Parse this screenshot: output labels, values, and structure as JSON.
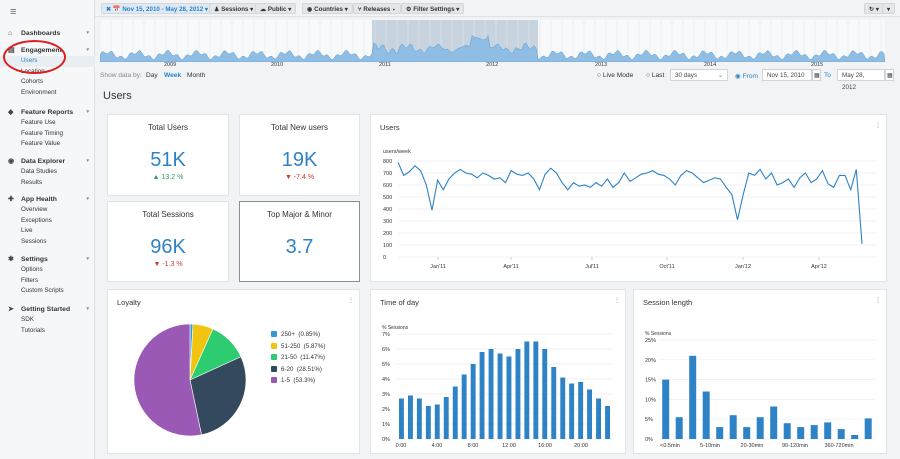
{
  "colors": {
    "accent": "#2d83c6",
    "green": "#2ecc71",
    "yellow": "#f1c40f",
    "navy": "#34495e",
    "purple": "#9b59b6",
    "blue": "#3498db",
    "red": "#d0392b"
  },
  "sidebar": {
    "menu_icon": "≡",
    "sections": [
      {
        "title": "Dashboards",
        "icon": "dashboard-icon",
        "glyph": "⌂",
        "items": []
      },
      {
        "title": "Engagement",
        "icon": "engagement-icon",
        "glyph": "▤",
        "items": [
          "Users",
          "Location",
          "Cohorts",
          "Environment"
        ]
      },
      {
        "title": "Feature Reports",
        "icon": "feature-reports-icon",
        "glyph": "◆",
        "items": [
          "Feature Use",
          "Feature Timing",
          "Feature Value"
        ]
      },
      {
        "title": "Data Explorer",
        "icon": "data-explorer-icon",
        "glyph": "◉",
        "items": [
          "Data Studies",
          "Results"
        ]
      },
      {
        "title": "App Health",
        "icon": "app-health-icon",
        "glyph": "✚",
        "items": [
          "Overview",
          "Exceptions",
          "Live",
          "Sessions"
        ]
      },
      {
        "title": "Settings",
        "icon": "settings-icon",
        "glyph": "✱",
        "items": [
          "Options",
          "Filters",
          "Custom Scripts"
        ]
      },
      {
        "title": "Getting Started",
        "icon": "getting-started-icon",
        "glyph": "➤",
        "items": [
          "SDK",
          "Tutorials"
        ]
      }
    ],
    "active_item": "Users"
  },
  "topbar": {
    "date_range": "✖ 📅 Nov 15, 2010 - May 28, 2012 ▾",
    "sessions": "♟ Sessions ▾",
    "public": "☁ Public ▾",
    "countries": "◉ Countries ▾",
    "releases": "⑂ Releases ▾",
    "filter": "⚙ Filter Settings ▾",
    "refresh": "↻ ▾",
    "more": "▾"
  },
  "overview": {
    "years": [
      "2009",
      "2010",
      "2011",
      "2012",
      "2013",
      "2014",
      "2015"
    ]
  },
  "controls": {
    "show_by": "Show data by:",
    "day": "Day",
    "week": "Week",
    "month": "Month",
    "live_mode": "Live Mode",
    "last": "Last",
    "last_value": "30 days",
    "from": "From",
    "from_value": "Nov 15, 2010",
    "to": "To",
    "to_value": "May 28, 2012"
  },
  "page_title": "Users",
  "kpis": [
    {
      "title": "Total Users",
      "value": "51K",
      "delta": "▲ 13.2 %",
      "dir": "up"
    },
    {
      "title": "Total New users",
      "value": "19K",
      "delta": "▼ -7.4 %",
      "dir": "down"
    },
    {
      "title": "Total Sessions",
      "value": "96K",
      "delta": "▼ -1.3 %",
      "dir": "down"
    },
    {
      "title": "Top Major & Minor",
      "value": "3.7",
      "delta": "",
      "dir": "none"
    }
  ],
  "charts": {
    "users_title": "Users",
    "loyalty_title": "Loyalty",
    "tod_title": "Time of day",
    "sl_title": "Session length",
    "menu": "⋮"
  },
  "chart_data": [
    {
      "type": "line",
      "title": "Users",
      "ylabel": "users/week",
      "ylim": [
        0,
        800
      ],
      "y_ticks": [
        "800",
        "700",
        "600",
        "500",
        "400",
        "300",
        "200",
        "100",
        "0"
      ],
      "x_tick_labels": [
        "Jan'11",
        "Apr'11",
        "Jul'11",
        "Oct'11",
        "Jan'12",
        "Apr'12"
      ],
      "values": [
        790,
        680,
        710,
        760,
        720,
        600,
        390,
        640,
        560,
        650,
        700,
        730,
        700,
        690,
        660,
        700,
        680,
        650,
        660,
        620,
        720,
        690,
        680,
        700,
        650,
        560,
        690,
        740,
        700,
        620,
        560,
        620,
        590,
        600,
        580,
        620,
        590,
        650,
        580,
        620,
        700,
        630,
        660,
        690,
        700,
        720,
        690,
        680,
        650,
        600,
        680,
        720,
        700,
        660,
        620,
        640,
        660,
        650,
        580,
        520,
        310,
        520,
        700,
        680,
        730,
        650,
        700,
        600,
        620,
        650,
        580,
        660,
        700,
        620,
        650,
        720,
        610,
        580,
        680,
        680,
        560,
        730,
        110
      ],
      "grid": true
    },
    {
      "type": "pie",
      "title": "Loyalty",
      "slices": [
        {
          "label": "250+",
          "pct_label": "(0.85%)",
          "value": 0.85,
          "color": "#3498db"
        },
        {
          "label": "51-250",
          "pct_label": "(5.87%)",
          "value": 5.87,
          "color": "#f1c40f"
        },
        {
          "label": "21-50",
          "pct_label": "(11.47%)",
          "value": 11.47,
          "color": "#2ecc71"
        },
        {
          "label": "6-20",
          "pct_label": "(28.51%)",
          "value": 28.51,
          "color": "#34495e"
        },
        {
          "label": "1-5",
          "pct_label": "(53.3%)",
          "value": 53.3,
          "color": "#9b59b6"
        }
      ],
      "legend": "right"
    },
    {
      "type": "bar",
      "title": "Time of day",
      "ylabel": "% Sessions",
      "ylim": [
        0,
        7
      ],
      "y_ticks": [
        "7%",
        "6%",
        "5%",
        "4%",
        "3%",
        "2%",
        "1%",
        "0%"
      ],
      "x_tick_labels": [
        "0:00",
        "4:00",
        "8:00",
        "12:00",
        "16:00",
        "20:00"
      ],
      "values": [
        2.7,
        2.9,
        2.7,
        2.2,
        2.3,
        2.8,
        3.5,
        4.3,
        5.0,
        5.8,
        6.0,
        5.7,
        5.5,
        6.0,
        6.5,
        6.5,
        6.0,
        4.8,
        4.1,
        3.7,
        3.8,
        3.3,
        2.7,
        2.2
      ]
    },
    {
      "type": "bar",
      "title": "Session length",
      "ylabel": "% Sessions",
      "ylim": [
        0,
        25
      ],
      "y_ticks": [
        "25%",
        "20%",
        "15%",
        "10%",
        "5%",
        "0%"
      ],
      "x_tick_labels": [
        "<0.5min",
        "5-10min",
        "20-30min",
        "90-120min",
        "360-720min"
      ],
      "values": [
        15,
        5.5,
        21,
        12,
        3,
        6,
        3,
        5.5,
        8.2,
        4,
        3,
        3.5,
        4.2,
        2.5,
        1,
        5.2
      ]
    }
  ]
}
